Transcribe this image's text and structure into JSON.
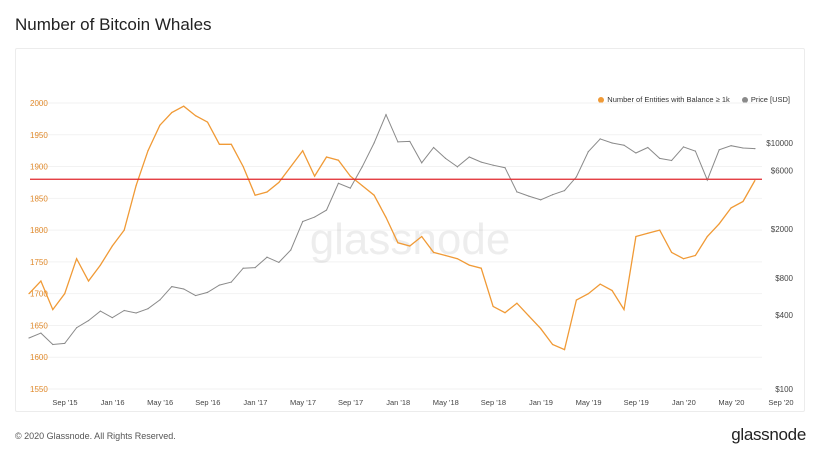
{
  "title": "Number of Bitcoin Whales",
  "footer": "© 2020 Glassnode. All Rights Reserved.",
  "brand": "glassnode",
  "watermark": "glassnode",
  "chart_data": {
    "type": "line",
    "title": "Number of Bitcoin Whales",
    "legend_position": "top-right",
    "x_ticks": [
      "Sep '15",
      "Jan '16",
      "May '16",
      "Sep '16",
      "Jan '17",
      "May '17",
      "Sep '17",
      "Jan '18",
      "May '18",
      "Sep '18",
      "Jan '19",
      "May '19",
      "Sep '19",
      "Jan '20",
      "May '20",
      "Sep '20"
    ],
    "y_left": {
      "ticks": [
        1550,
        1600,
        1650,
        1700,
        1750,
        1800,
        1850,
        1900,
        1950,
        2000
      ],
      "range": [
        1550,
        2000
      ],
      "color": "#e08a2c"
    },
    "y_right": {
      "ticks": [
        "$100",
        "$400",
        "$800",
        "$2000",
        "$6000",
        "$10000"
      ],
      "tick_values": [
        100,
        400,
        800,
        2000,
        6000,
        10000
      ],
      "scale": "log",
      "range": [
        100,
        10000
      ]
    },
    "threshold": {
      "value": 1880,
      "color": "#e0262b"
    },
    "x": [
      "2015-06",
      "2015-07",
      "2015-08",
      "2015-09",
      "2015-10",
      "2015-11",
      "2015-12",
      "2016-01",
      "2016-02",
      "2016-03",
      "2016-04",
      "2016-05",
      "2016-06",
      "2016-07",
      "2016-08",
      "2016-09",
      "2016-10",
      "2016-11",
      "2016-12",
      "2017-01",
      "2017-02",
      "2017-03",
      "2017-04",
      "2017-05",
      "2017-06",
      "2017-07",
      "2017-08",
      "2017-09",
      "2017-10",
      "2017-11",
      "2017-12",
      "2018-01",
      "2018-02",
      "2018-03",
      "2018-04",
      "2018-05",
      "2018-06",
      "2018-07",
      "2018-08",
      "2018-09",
      "2018-10",
      "2018-11",
      "2018-12",
      "2019-01",
      "2019-02",
      "2019-03",
      "2019-04",
      "2019-05",
      "2019-06",
      "2019-07",
      "2019-08",
      "2019-09",
      "2019-10",
      "2019-11",
      "2019-12",
      "2020-01",
      "2020-02",
      "2020-03",
      "2020-04",
      "2020-05",
      "2020-06",
      "2020-07"
    ],
    "series": [
      {
        "name": "Number of Entities with Balance ≥ 1k",
        "color": "#f09a36",
        "axis": "left",
        "values": [
          1700,
          1720,
          1675,
          1700,
          1755,
          1720,
          1745,
          1775,
          1800,
          1870,
          1925,
          1965,
          1985,
          1995,
          1980,
          1970,
          1935,
          1935,
          1900,
          1855,
          1860,
          1875,
          1900,
          1925,
          1885,
          1915,
          1910,
          1885,
          1870,
          1855,
          1820,
          1780,
          1775,
          1790,
          1765,
          1760,
          1755,
          1745,
          1740,
          1680,
          1670,
          1685,
          1665,
          1645,
          1620,
          1612,
          1690,
          1700,
          1715,
          1705,
          1675,
          1790,
          1795,
          1800,
          1765,
          1755,
          1760,
          1790,
          1810,
          1835,
          1845,
          1878
        ]
      },
      {
        "name": "Price [USD]",
        "color": "#8a8a8a",
        "axis": "right",
        "values": [
          260,
          285,
          230,
          235,
          315,
          360,
          430,
          380,
          435,
          415,
          450,
          530,
          680,
          650,
          575,
          610,
          700,
          740,
          960,
          970,
          1180,
          1070,
          1350,
          2300,
          2500,
          2850,
          4700,
          4300,
          6400,
          10000,
          17000,
          10200,
          10300,
          6900,
          9200,
          7500,
          6400,
          7700,
          7000,
          6600,
          6300,
          4000,
          3700,
          3450,
          3800,
          4100,
          5300,
          8500,
          10800,
          10000,
          9600,
          8300,
          9200,
          7500,
          7200,
          9300,
          8600,
          5000,
          8800,
          9500,
          9100,
          9000
        ]
      }
    ]
  }
}
